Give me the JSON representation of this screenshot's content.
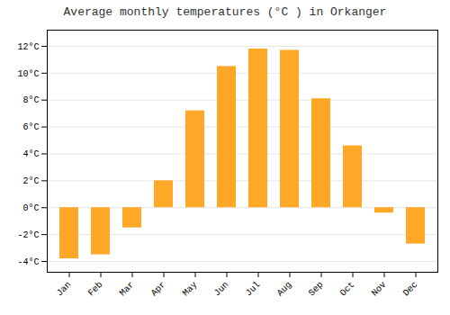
{
  "chart_data": {
    "type": "bar",
    "title": "Average monthly temperatures (°C ) in Orkanger",
    "categories": [
      "Jan",
      "Feb",
      "Mar",
      "Apr",
      "May",
      "Jun",
      "Jul",
      "Aug",
      "Sep",
      "Oct",
      "Nov",
      "Dec"
    ],
    "values": [
      -3.8,
      -3.5,
      -1.5,
      2.0,
      7.2,
      10.5,
      11.8,
      11.7,
      8.1,
      4.6,
      -0.4,
      -2.7
    ],
    "color": "#FFA726",
    "ylim": [
      -4.8,
      13.2
    ],
    "yticks": [
      {
        "value": -4,
        "label": "-4°C"
      },
      {
        "value": -2,
        "label": "-2°C"
      },
      {
        "value": 0,
        "label": "0°C"
      },
      {
        "value": 2,
        "label": "2°C"
      },
      {
        "value": 4,
        "label": "4°C"
      },
      {
        "value": 6,
        "label": "6°C"
      },
      {
        "value": 8,
        "label": "8°C"
      },
      {
        "value": 10,
        "label": "10°C"
      },
      {
        "value": 12,
        "label": "12°C"
      }
    ],
    "grid": true
  }
}
